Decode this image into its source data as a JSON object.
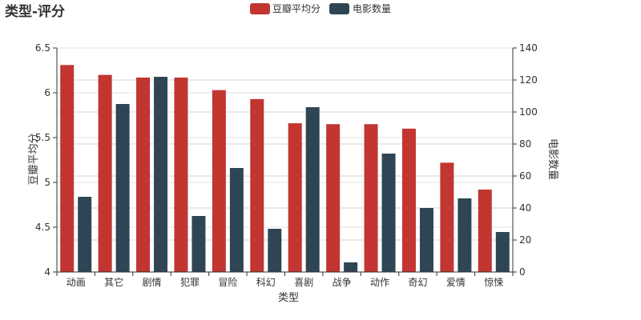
{
  "chart_data": {
    "type": "bar",
    "title": "类型-评分",
    "xlabel": "类型",
    "ylabel_left": "豆瓣平均分",
    "ylabel_right": "电影数量",
    "categories": [
      "动画",
      "其它",
      "剧情",
      "犯罪",
      "冒险",
      "科幻",
      "喜剧",
      "战争",
      "动作",
      "奇幻",
      "爱情",
      "惊悚"
    ],
    "series": [
      {
        "name": "豆瓣平均分",
        "axis": "left",
        "color": "#c23531",
        "values": [
          6.31,
          6.2,
          6.17,
          6.17,
          6.03,
          5.93,
          5.66,
          5.65,
          5.65,
          5.6,
          5.22,
          4.92
        ]
      },
      {
        "name": "电影数量",
        "axis": "right",
        "color": "#2f4554",
        "values": [
          47,
          105,
          122,
          35,
          65,
          27,
          103,
          6,
          74,
          40,
          46,
          25
        ]
      }
    ],
    "ylim_left": [
      4,
      6.5
    ],
    "yticks_left": [
      "4",
      "4.5",
      "5",
      "5.5",
      "6",
      "6.5"
    ],
    "ylim_right": [
      0,
      140
    ],
    "yticks_right": [
      "0",
      "20",
      "40",
      "60",
      "80",
      "100",
      "120",
      "140"
    ],
    "grid": true,
    "legend_position": "top-center"
  }
}
